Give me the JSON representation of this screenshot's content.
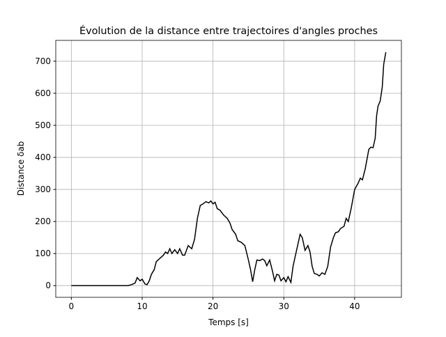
{
  "chart_data": {
    "type": "line",
    "title": "Évolution de la distance entre trajectoires d'angles proches",
    "x_label": "Temps [s]",
    "y_label": "Distance δab",
    "x": [
      0,
      2,
      4,
      6,
      8,
      8.5,
      9,
      9.3,
      9.7,
      10,
      10.4,
      10.7,
      11,
      11.3,
      11.7,
      12,
      12.5,
      13,
      13.3,
      13.6,
      13.9,
      14.2,
      14.6,
      15,
      15.3,
      15.7,
      16,
      16.5,
      17,
      17.4,
      17.8,
      18.2,
      18.6,
      19,
      19.4,
      19.7,
      20,
      20.3,
      20.6,
      21,
      21.5,
      22,
      22.4,
      22.7,
      23.2,
      23.5,
      24,
      24.5,
      25,
      25.3,
      25.6,
      25.9,
      26.2,
      26.6,
      27,
      27.3,
      27.6,
      28,
      28.4,
      28.7,
      29,
      29.3,
      29.6,
      30,
      30.3,
      30.6,
      31,
      31.3,
      31.6,
      32,
      32.3,
      32.6,
      33,
      33.4,
      33.7,
      34,
      34.3,
      34.7,
      35,
      35.4,
      35.8,
      36.2,
      36.6,
      37,
      37.3,
      37.7,
      38,
      38.5,
      38.8,
      39.1,
      39.5,
      40,
      40.5,
      40.8,
      41.1,
      41.5,
      42,
      42.3,
      42.6,
      42.9,
      43.1,
      43.3,
      43.6,
      43.9,
      44.1,
      44.4
    ],
    "series": [
      {
        "name": "distance",
        "color": "#000000",
        "values": [
          0,
          0,
          0,
          0,
          0,
          3,
          8,
          25,
          15,
          20,
          5,
          3,
          15,
          35,
          50,
          75,
          85,
          95,
          105,
          100,
          115,
          100,
          112,
          100,
          115,
          95,
          95,
          125,
          115,
          145,
          210,
          250,
          255,
          262,
          258,
          264,
          255,
          260,
          240,
          235,
          220,
          210,
          195,
          175,
          160,
          140,
          135,
          125,
          80,
          50,
          12,
          50,
          80,
          78,
          83,
          78,
          62,
          80,
          45,
          15,
          35,
          33,
          15,
          25,
          12,
          28,
          10,
          60,
          90,
          130,
          160,
          150,
          110,
          125,
          105,
          60,
          38,
          35,
          30,
          40,
          35,
          60,
          120,
          150,
          165,
          168,
          178,
          185,
          210,
          200,
          240,
          300,
          320,
          335,
          330,
          365,
          425,
          432,
          430,
          460,
          530,
          560,
          575,
          620,
          690,
          728
        ]
      }
    ],
    "xlim": [
      -2.2,
      46.6
    ],
    "ylim": [
      -36.5,
      765
    ],
    "xticks": [
      0,
      10,
      20,
      30,
      40
    ],
    "yticks": [
      0,
      100,
      200,
      300,
      400,
      500,
      600,
      700
    ],
    "grid": true
  }
}
